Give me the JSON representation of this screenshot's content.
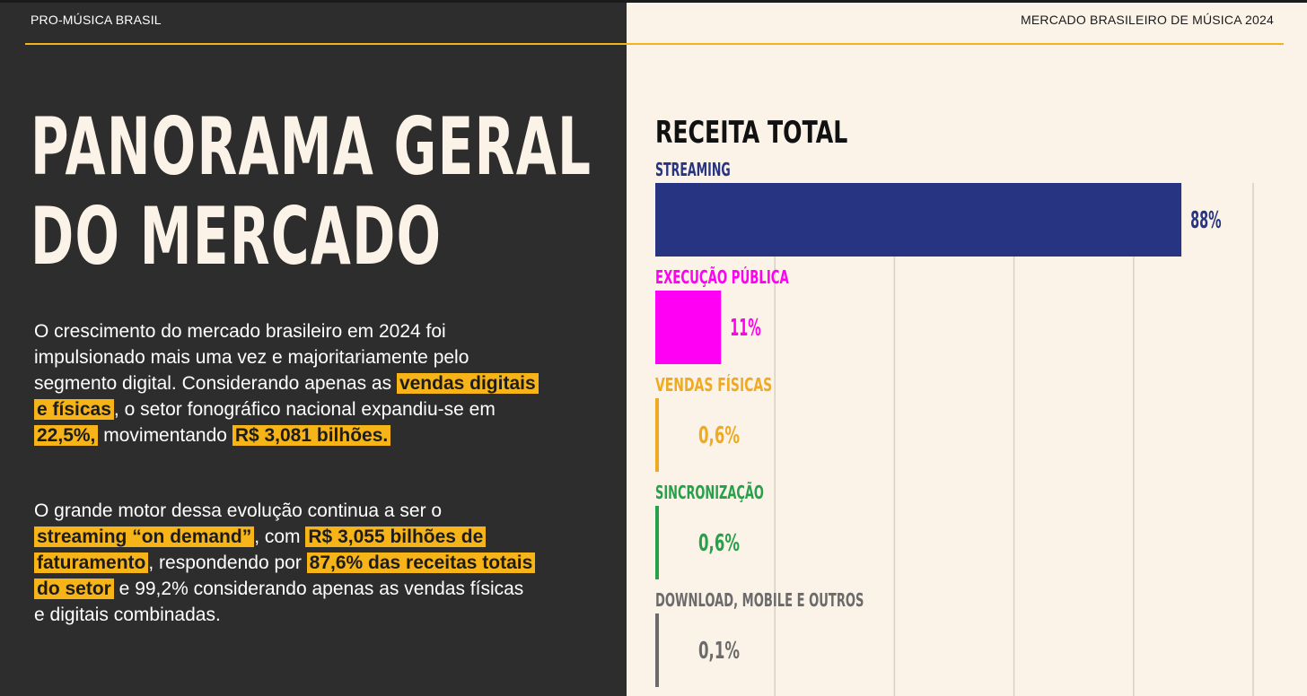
{
  "header": {
    "brand": "PRO-MÚSICA BRASIL",
    "report": "MERCADO BRASILEIRO DE MÚSICA 2024",
    "accent": "#f2b41c"
  },
  "page": {
    "title_line1": "PANORAMA GERAL",
    "title_line2": "DO MERCADO"
  },
  "text": {
    "p1": [
      {
        "t": "O crescimento do mercado brasileiro em 2024 foi impulsionado mais uma vez e majoritariamente pelo segmento digital. Considerando apenas as ",
        "hl": false
      },
      {
        "t": "vendas digitais e físicas",
        "hl": true
      },
      {
        "t": ", o setor fonográfico nacional expandiu-se em ",
        "hl": false
      },
      {
        "t": "22,5%,",
        "hl": true
      },
      {
        "t": " movimentando ",
        "hl": false
      },
      {
        "t": "R$ 3,081 bilhões.",
        "hl": true
      }
    ],
    "p2": [
      {
        "t": "O grande motor dessa evolução continua a ser o ",
        "hl": false
      },
      {
        "t": "streaming “on demand”",
        "hl": true
      },
      {
        "t": ", com ",
        "hl": false
      },
      {
        "t": "R$ 3,055 bilhões de faturamento",
        "hl": true
      },
      {
        "t": ", respondendo por ",
        "hl": false
      },
      {
        "t": "87,6% das receitas totais do setor",
        "hl": true
      },
      {
        "t": " e 99,2% considerando apenas as vendas físicas e digitais combinadas.",
        "hl": false
      }
    ]
  },
  "chart_data": {
    "type": "bar",
    "orientation": "horizontal",
    "title": "RECEITA TOTAL",
    "grid": true,
    "xlim": [
      0,
      100
    ],
    "categories": [
      "STREAMING",
      "EXECUÇÃO PÚBLICA",
      "VENDAS FÍSICAS",
      "SINCRONIZAÇÃO",
      "DOWNLOAD, MOBILE E OUTROS"
    ],
    "values": [
      88,
      11,
      0.6,
      0.6,
      0.1
    ],
    "value_labels": [
      "88%",
      "11%",
      "0,6%",
      "0,6%",
      "0,1%"
    ],
    "colors": [
      "#263482",
      "#ff00f4",
      "#efaa22",
      "#27a04a",
      "#6b6b6b"
    ]
  }
}
